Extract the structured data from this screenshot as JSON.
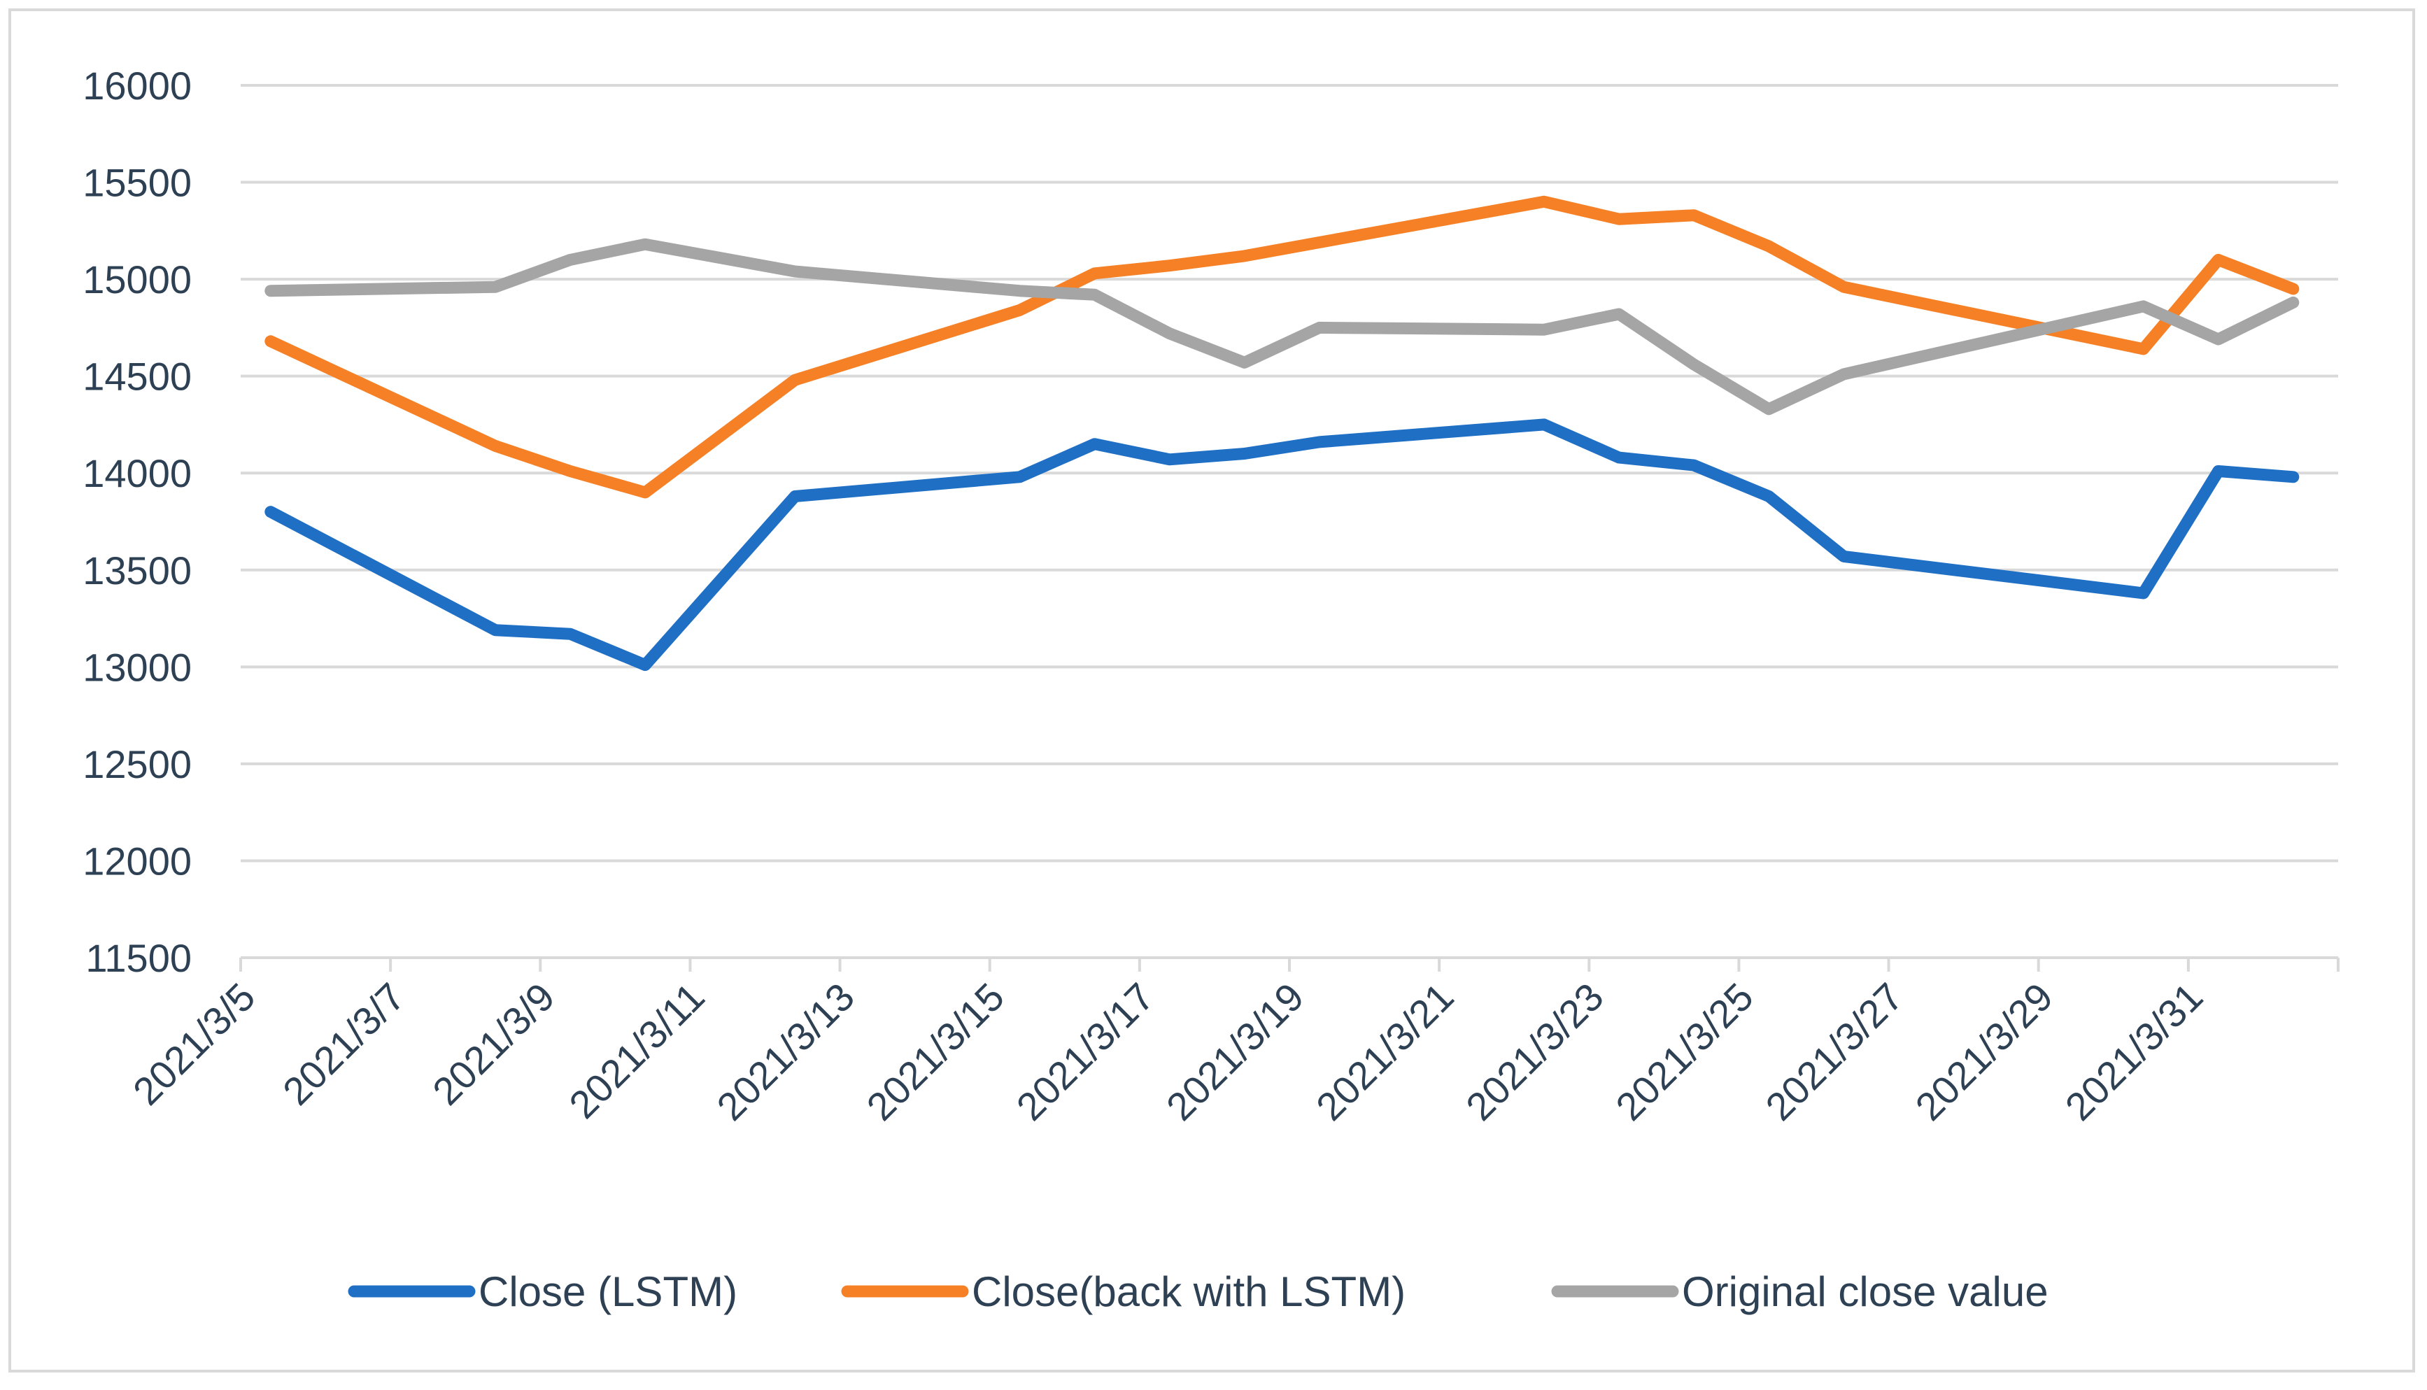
{
  "chart_data": {
    "type": "line",
    "title": "",
    "xlabel": "",
    "ylabel": "",
    "ylim": [
      11500,
      16000
    ],
    "y_ticks": [
      "11500",
      "12000",
      "12500",
      "13000",
      "13500",
      "14000",
      "14500",
      "15000",
      "15500",
      "16000"
    ],
    "x_range": [
      0,
      28
    ],
    "x_ticks": [
      {
        "x": 0,
        "label": "2021/3/5"
      },
      {
        "x": 2,
        "label": "2021/3/7"
      },
      {
        "x": 4,
        "label": "2021/3/9"
      },
      {
        "x": 6,
        "label": "2021/3/11"
      },
      {
        "x": 8,
        "label": "2021/3/13"
      },
      {
        "x": 10,
        "label": "2021/3/15"
      },
      {
        "x": 12,
        "label": "2021/3/17"
      },
      {
        "x": 14,
        "label": "2021/3/19"
      },
      {
        "x": 16,
        "label": "2021/3/21"
      },
      {
        "x": 18,
        "label": "2021/3/23"
      },
      {
        "x": 20,
        "label": "2021/3/25"
      },
      {
        "x": 22,
        "label": "2021/3/27"
      },
      {
        "x": 24,
        "label": "2021/3/29"
      },
      {
        "x": 26,
        "label": "2021/3/31"
      }
    ],
    "grid": true,
    "legend_position": "bottom",
    "series": [
      {
        "name": "Close (LSTM)",
        "color": "#1f6fc5",
        "points": [
          [
            0.4,
            13800
          ],
          [
            3.4,
            13190
          ],
          [
            4.4,
            13170
          ],
          [
            5.4,
            13010
          ],
          [
            7.4,
            13880
          ],
          [
            10.4,
            13980
          ],
          [
            11.4,
            14150
          ],
          [
            12.4,
            14070
          ],
          [
            13.4,
            14100
          ],
          [
            14.4,
            14160
          ],
          [
            17.4,
            14250
          ],
          [
            18.4,
            14080
          ],
          [
            19.4,
            14040
          ],
          [
            20.4,
            13880
          ],
          [
            21.4,
            13570
          ],
          [
            25.4,
            13380
          ],
          [
            26.4,
            14010
          ],
          [
            27.4,
            13980
          ]
        ]
      },
      {
        "name": "Close(back with LSTM)",
        "color": "#f58025",
        "points": [
          [
            0.4,
            14680
          ],
          [
            3.4,
            14140
          ],
          [
            4.4,
            14010
          ],
          [
            5.4,
            13900
          ],
          [
            7.4,
            14480
          ],
          [
            10.4,
            14840
          ],
          [
            11.4,
            15030
          ],
          [
            12.4,
            15070
          ],
          [
            13.4,
            15120
          ],
          [
            14.4,
            15190
          ],
          [
            17.4,
            15400
          ],
          [
            18.4,
            15310
          ],
          [
            19.4,
            15330
          ],
          [
            20.4,
            15170
          ],
          [
            21.4,
            14960
          ],
          [
            25.4,
            14640
          ],
          [
            26.4,
            15100
          ],
          [
            27.4,
            14950
          ]
        ]
      },
      {
        "name": "Original close value",
        "color": "#a5a5a5",
        "points": [
          [
            0.4,
            14940
          ],
          [
            3.4,
            14960
          ],
          [
            4.4,
            15100
          ],
          [
            5.4,
            15180
          ],
          [
            7.4,
            15040
          ],
          [
            10.4,
            14940
          ],
          [
            11.4,
            14920
          ],
          [
            12.4,
            14720
          ],
          [
            13.4,
            14570
          ],
          [
            14.4,
            14750
          ],
          [
            17.4,
            14740
          ],
          [
            18.4,
            14820
          ],
          [
            19.4,
            14560
          ],
          [
            20.4,
            14330
          ],
          [
            21.4,
            14510
          ],
          [
            25.4,
            14860
          ],
          [
            26.4,
            14690
          ],
          [
            27.4,
            14880
          ]
        ]
      }
    ]
  }
}
